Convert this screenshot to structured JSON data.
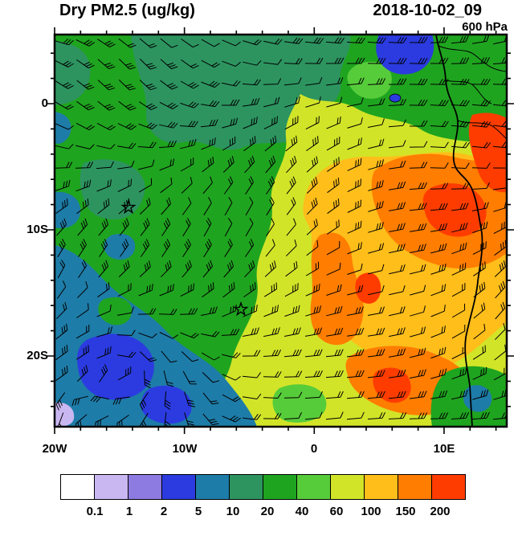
{
  "header": {
    "title": "Dry PM2.5 (ug/kg)",
    "datetime": "2018-10-02_09",
    "level": "600 hPa"
  },
  "axes": {
    "x_ticks": [
      "20W",
      "10W",
      "0",
      "10E"
    ],
    "y_ticks": [
      "0",
      "10S",
      "20S"
    ]
  },
  "colorbar": {
    "labels": [
      "0.1",
      "1",
      "2",
      "5",
      "10",
      "20",
      "40",
      "60",
      "100",
      "150",
      "200"
    ],
    "colors": [
      "#FFFFFF",
      "#C9B7F2",
      "#8D7BE2",
      "#2B3BE0",
      "#1E7CA8",
      "#2D9460",
      "#1FA41F",
      "#57CC3A",
      "#D2E428",
      "#FFBE1A",
      "#FF7D00",
      "#FF3C00"
    ]
  },
  "chart_data": {
    "type": "heatmap",
    "title": "Dry PM2.5 (ug/kg)",
    "valid_time": "2018-10-02_09",
    "pressure_level": "600 hPa",
    "units": "ug/kg",
    "x_tick_labels": [
      "20W",
      "10W",
      "0",
      "10E"
    ],
    "y_tick_labels": [
      "0",
      "10S",
      "20S"
    ],
    "lon_range_deg": [
      -20,
      15
    ],
    "lat_range_deg": [
      5.4,
      -25.3
    ],
    "contour_levels": [
      0.1,
      1,
      2,
      5,
      10,
      20,
      40,
      60,
      100,
      150,
      200
    ],
    "overlays": [
      "wind barbs",
      "African coastline",
      "country borders"
    ],
    "markers": [
      {
        "symbol": "star",
        "lon": "~14W",
        "lat": "~8S",
        "px": {
          "x": 92,
          "y": 215
        }
      },
      {
        "symbol": "star",
        "lon": "~6W",
        "lat": "~16S",
        "px": {
          "x": 232,
          "y": 342
        }
      }
    ],
    "regions": [
      {
        "area": "near Angola/Congo coast and adjacent interior (5S-12S, east of 5E)",
        "approx_value": "100-200+"
      },
      {
        "area": "central smoke plume over SE Atlantic",
        "approx_value": "60-150"
      },
      {
        "area": "equatorial and NW Atlantic",
        "approx_value": "10-40"
      },
      {
        "area": "far SW ocean, cyclonic circulation near 18W 22S",
        "approx_value": "0.1-5"
      }
    ]
  }
}
